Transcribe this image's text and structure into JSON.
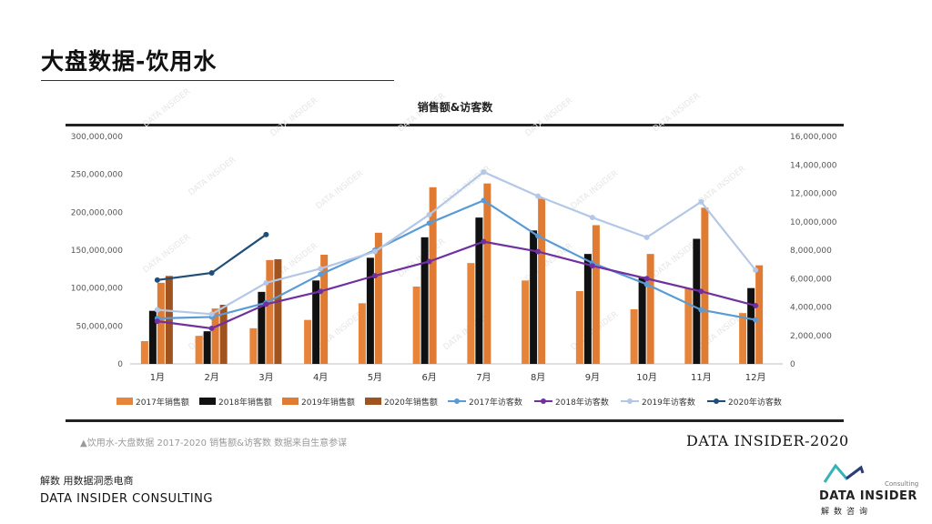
{
  "page": {
    "title": "大盘数据-饮用水",
    "caption": "▲饮用水-大盘数据 2017-2020 销售额&访客数 数据来自生意参谋",
    "brand_tag": "DATA INSIDER-2020",
    "footer_cn": "解数 用数据洞悉电商",
    "footer_en": "DATA INSIDER CONSULTING",
    "logo_main": "DATA INSIDER",
    "logo_sub": "解数咨询",
    "logo_consult": "Consulting",
    "watermark_text": "DATA INSIDER"
  },
  "colors": {
    "bar_2017": "#E8833A",
    "bar_2018": "#111111",
    "bar_2019": "#E07B33",
    "bar_2020": "#A0521F",
    "line_2017": "#5B9BD5",
    "line_2018": "#7030A0",
    "line_2019": "#B4C7E7",
    "line_2020": "#1F4E79",
    "logo_teal": "#36B3B7",
    "logo_navy": "#2E3B7A"
  },
  "chart_data": {
    "type": "bar",
    "title": "销售额&访客数",
    "categories": [
      "1月",
      "2月",
      "3月",
      "4月",
      "5月",
      "6月",
      "7月",
      "8月",
      "9月",
      "10月",
      "11月",
      "12月"
    ],
    "y_left": {
      "min": 0,
      "max": 300000000,
      "ticks": [
        "0",
        "50,000,000",
        "100,000,000",
        "150,000,000",
        "200,000,000",
        "250,000,000",
        "300,000,000"
      ]
    },
    "y_right": {
      "min": 0,
      "max": 16000000,
      "ticks": [
        "0",
        "2,000,000",
        "4,000,000",
        "6,000,000",
        "8,000,000",
        "10,000,000",
        "12,000,000",
        "14,000,000",
        "16,000,000"
      ]
    },
    "bar_series": [
      {
        "name": "2017年销售额",
        "values": [
          30000000,
          37000000,
          47000000,
          58000000,
          80000000,
          102000000,
          133000000,
          110000000,
          96000000,
          72000000,
          100000000,
          67000000
        ]
      },
      {
        "name": "2018年销售额",
        "values": [
          70000000,
          43000000,
          95000000,
          110000000,
          140000000,
          167000000,
          193000000,
          176000000,
          145000000,
          115000000,
          165000000,
          100000000
        ]
      },
      {
        "name": "2019年销售额",
        "values": [
          107000000,
          73000000,
          137000000,
          144000000,
          173000000,
          233000000,
          238000000,
          218000000,
          183000000,
          145000000,
          206000000,
          130000000
        ]
      },
      {
        "name": "2020年销售额",
        "values": [
          116000000,
          78000000,
          138000000,
          null,
          null,
          null,
          null,
          null,
          null,
          null,
          null,
          null
        ]
      }
    ],
    "line_series": [
      {
        "name": "2017年访客数",
        "values": [
          3200000,
          3300000,
          4300000,
          6300000,
          8000000,
          9900000,
          11500000,
          9000000,
          7100000,
          5600000,
          3800000,
          3100000
        ]
      },
      {
        "name": "2018年访客数",
        "values": [
          3000000,
          2500000,
          4200000,
          5100000,
          6200000,
          7200000,
          8600000,
          7900000,
          6900000,
          6000000,
          5100000,
          4100000
        ]
      },
      {
        "name": "2019年访客数",
        "values": [
          3800000,
          3500000,
          5700000,
          6700000,
          7900000,
          10500000,
          13500000,
          11800000,
          10300000,
          8900000,
          11400000,
          6600000
        ]
      },
      {
        "name": "2020年访客数",
        "values": [
          5900000,
          6400000,
          9100000,
          null,
          null,
          null,
          null,
          null,
          null,
          null,
          null,
          null
        ]
      }
    ],
    "legend": [
      "2017年销售额",
      "2018年销售额",
      "2019年销售额",
      "2020年销售额",
      "2017年访客数",
      "2018年访客数",
      "2019年访客数",
      "2020年访客数"
    ],
    "legend_position": "bottom"
  }
}
